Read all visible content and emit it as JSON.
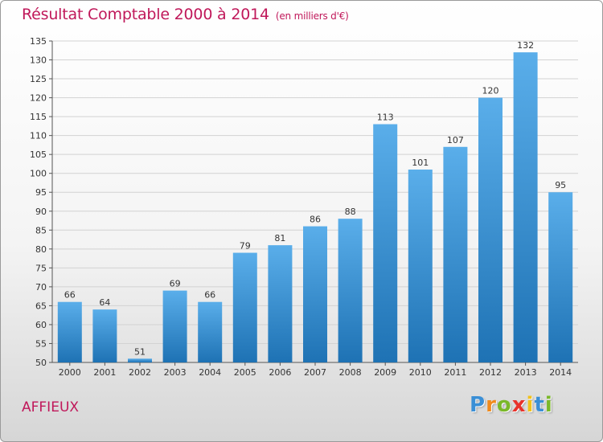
{
  "chart_data": {
    "type": "bar",
    "title": "Résultat Comptable 2000 à 2014",
    "subtitle": "(en milliers d'€)",
    "categories": [
      "2000",
      "2001",
      "2002",
      "2003",
      "2004",
      "2005",
      "2006",
      "2007",
      "2008",
      "2009",
      "2010",
      "2011",
      "2012",
      "2013",
      "2014"
    ],
    "values": [
      66,
      64,
      51,
      69,
      66,
      79,
      81,
      86,
      88,
      113,
      101,
      107,
      120,
      132,
      95
    ],
    "ylim": [
      50,
      135
    ],
    "yticks": [
      50,
      55,
      60,
      65,
      70,
      75,
      80,
      85,
      90,
      95,
      100,
      105,
      110,
      115,
      120,
      125,
      130,
      135
    ],
    "grid": true,
    "bar_color_top": "#5aaeea",
    "bar_color_bottom": "#1e72b4"
  },
  "commune": "AFFIEUX",
  "logo": {
    "letters": [
      "P",
      "r",
      "o",
      "x",
      "i",
      "t",
      "i"
    ],
    "colors": [
      "#3a8fd6",
      "#f08a1c",
      "#7ab829",
      "#e8322b",
      "#f2c21b",
      "#3a8fd6",
      "#7ab829"
    ]
  }
}
